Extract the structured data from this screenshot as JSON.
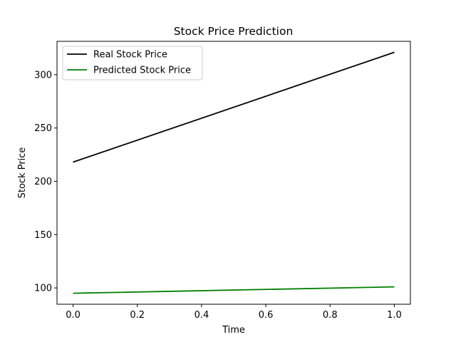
{
  "chart_data": {
    "type": "line",
    "title": "Stock Price Prediction",
    "xlabel": "Time",
    "ylabel": "Stock Price",
    "x": [
      0.0,
      1.0
    ],
    "series": [
      {
        "name": "Real Stock Price",
        "color": "#000000",
        "values": [
          218,
          321
        ]
      },
      {
        "name": "Predicted Stock Price",
        "color": "#008000",
        "values": [
          95,
          101
        ]
      }
    ],
    "xlim": [
      -0.05,
      1.05
    ],
    "ylim": [
      84.7,
      331.3
    ],
    "xticks": [
      0.0,
      0.2,
      0.4,
      0.6,
      0.8,
      1.0
    ],
    "xtick_labels": [
      "0.0",
      "0.2",
      "0.4",
      "0.6",
      "0.8",
      "1.0"
    ],
    "yticks": [
      100,
      150,
      200,
      250,
      300
    ],
    "ytick_labels": [
      "100",
      "150",
      "200",
      "250",
      "300"
    ],
    "grid": false,
    "legend_position": "upper-left"
  }
}
